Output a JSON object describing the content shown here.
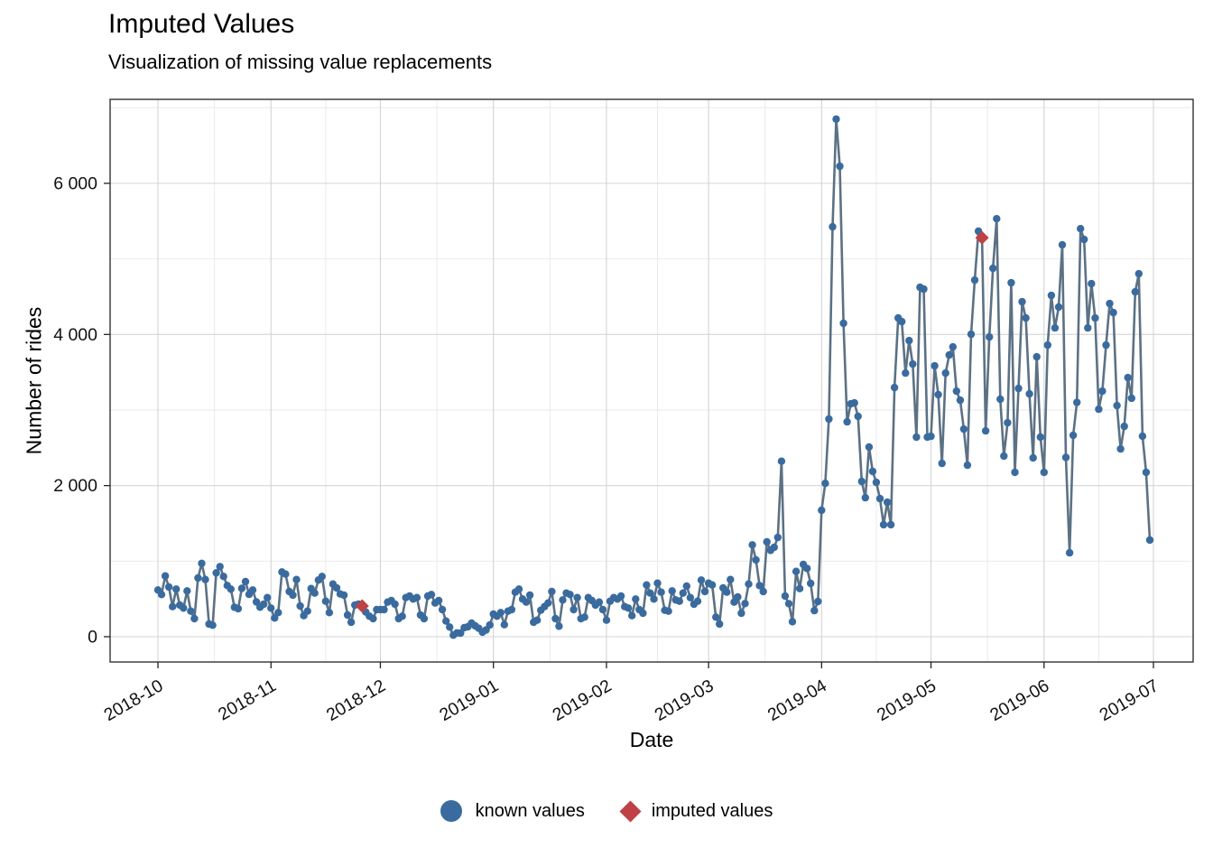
{
  "header": {
    "title": "Imputed Values",
    "subtitle": "Visualization of missing value replacements"
  },
  "axes": {
    "x_title": "Date",
    "y_title": "Number of rides"
  },
  "legend": {
    "known_label": "known values",
    "imputed_label": "imputed values"
  },
  "chart_data": {
    "type": "line",
    "title": "Imputed Values",
    "subtitle": "Visualization of missing value replacements",
    "xlabel": "Date",
    "ylabel": "Number of rides",
    "x_start_date": "2018-10-01",
    "frequency": "daily",
    "grid": true,
    "legend_position": "bottom",
    "ylim": [
      0,
      7100
    ],
    "y_major": [
      0,
      2000,
      4000,
      6000
    ],
    "y_tick_labels": [
      "0",
      "2 000",
      "4 000",
      "6 000"
    ],
    "y_minor": [
      1000,
      3000,
      5000,
      7000
    ],
    "x_ticks": [
      {
        "label": "2018-10",
        "day": 0
      },
      {
        "label": "2018-11",
        "day": 31
      },
      {
        "label": "2018-12",
        "day": 61
      },
      {
        "label": "2019-01",
        "day": 92
      },
      {
        "label": "2019-02",
        "day": 123
      },
      {
        "label": "2019-03",
        "day": 151
      },
      {
        "label": "2019-04",
        "day": 182
      },
      {
        "label": "2019-05",
        "day": 212
      },
      {
        "label": "2019-06",
        "day": 243
      },
      {
        "label": "2019-07",
        "day": 273
      }
    ],
    "colors": {
      "known_point": "#3a6b9f",
      "imputed_point": "#bf4146",
      "line": "#5c7184",
      "grid_major": "#d4d4d4",
      "grid_minor": "#e8e8e8",
      "panel_border": "#333333"
    },
    "series_name": "Number of rides per day",
    "values": [
      618,
      558,
      804,
      657,
      398,
      630,
      418,
      379,
      606,
      338,
      239,
      777,
      970,
      757,
      167,
      152,
      845,
      928,
      797,
      678,
      630,
      390,
      370,
      640,
      729,
      560,
      618,
      460,
      391,
      430,
      518,
      379,
      247,
      319,
      857,
      828,
      598,
      550,
      757,
      406,
      279,
      338,
      637,
      577,
      749,
      797,
      470,
      319,
      697,
      645,
      565,
      550,
      287,
      191,
      418,
      430,
      406,
      326,
      271,
      239,
      359,
      359,
      359,
      458,
      478,
      430,
      239,
      271,
      518,
      538,
      498,
      518,
      287,
      239,
      538,
      558,
      446,
      478,
      359,
      207,
      128,
      20,
      50,
      48,
      120,
      131,
      179,
      143,
      111,
      60,
      90,
      155,
      299,
      271,
      319,
      159,
      338,
      359,
      589,
      630,
      498,
      458,
      550,
      191,
      219,
      350,
      398,
      446,
      598,
      239,
      139,
      486,
      577,
      558,
      359,
      518,
      239,
      259,
      518,
      478,
      418,
      458,
      359,
      219,
      470,
      518,
      498,
      538,
      398,
      379,
      279,
      498,
      359,
      311,
      685,
      577,
      498,
      709,
      589,
      350,
      338,
      606,
      486,
      470,
      577,
      669,
      518,
      430,
      470,
      749,
      598,
      709,
      685,
      259,
      167,
      645,
      589,
      757,
      458,
      526,
      311,
      439,
      697,
      1215,
      1016,
      677,
      598,
      1255,
      1143,
      1183,
      1314,
      2322,
      538,
      438,
      199,
      864,
      637,
      956,
      904,
      705,
      346,
      466,
      1673,
      2030,
      2880,
      5425,
      6850,
      6226,
      4147,
      2844,
      3083,
      3095,
      2916,
      2055,
      1840,
      2510,
      2187,
      2043,
      1828,
      1482,
      1780,
      1482,
      3298,
      4218,
      4170,
      3489,
      3919,
      3608,
      2641,
      4624,
      4600,
      2641,
      2652,
      3585,
      3203,
      2294,
      3489,
      3728,
      3835,
      3250,
      3130,
      2748,
      2270,
      4003,
      4720,
      5366,
      5280,
      2724,
      3967,
      4875,
      5532,
      3143,
      2390,
      2832,
      4684,
      2175,
      3286,
      4433,
      4218,
      3214,
      2366,
      3704,
      2641,
      2175,
      3859,
      4517,
      4086,
      4362,
      5186,
      2372,
      1110,
      2665,
      3100,
      5400,
      5258,
      4086,
      4672,
      4218,
      3011,
      3250,
      3859,
      4409,
      4290,
      3059,
      2485,
      2784,
      3429,
      3155,
      4565,
      4803,
      2653,
      2175,
      1279
    ],
    "imputed": [
      {
        "date": "2018-11-26",
        "index": 56,
        "value": 406
      },
      {
        "date": "2019-05-15",
        "index": 226,
        "value": 5280
      }
    ],
    "legend": [
      {
        "label": "known values",
        "marker": "circle",
        "color": "#3a6b9f"
      },
      {
        "label": "imputed values",
        "marker": "diamond",
        "color": "#bf4146"
      }
    ]
  }
}
